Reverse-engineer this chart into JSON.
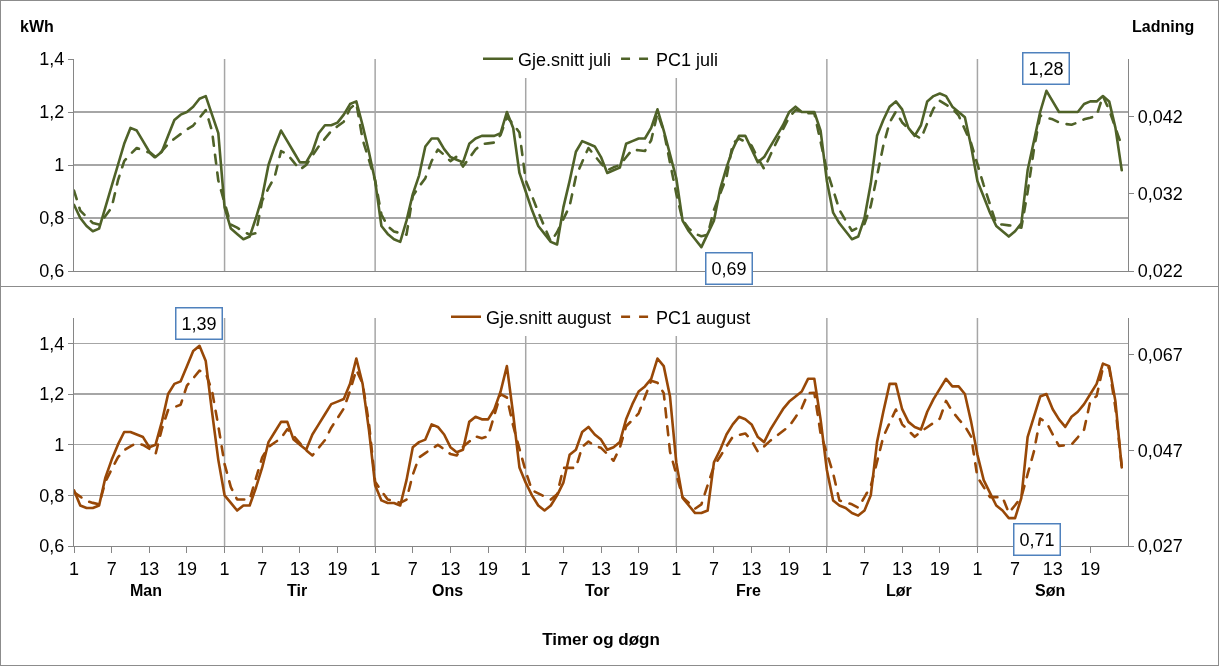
{
  "chart_data": [
    {
      "type": "line",
      "ylabel": "kWh",
      "y2label": "Ladning",
      "categories": [
        "1",
        null,
        null,
        null,
        null,
        null,
        "7",
        null,
        null,
        null,
        null,
        null,
        "13",
        null,
        null,
        null,
        null,
        null,
        "19",
        null,
        null,
        null,
        null,
        null,
        "1",
        null,
        null,
        null,
        null,
        null,
        "7",
        null,
        null,
        null,
        null,
        null,
        "13",
        null,
        null,
        null,
        null,
        null,
        "19",
        null,
        null,
        null,
        null,
        null,
        "1",
        null,
        null,
        null,
        null,
        null,
        "7",
        null,
        null,
        null,
        null,
        null,
        "13",
        null,
        null,
        null,
        null,
        null,
        "19",
        null,
        null,
        null,
        null,
        null,
        "1",
        null,
        null,
        null,
        null,
        null,
        "7",
        null,
        null,
        null,
        null,
        null,
        "13",
        null,
        null,
        null,
        null,
        null,
        "19",
        null,
        null,
        null,
        null,
        null,
        "1",
        null,
        null,
        null,
        null,
        null,
        "7",
        null,
        null,
        null,
        null,
        null,
        "13",
        null,
        null,
        null,
        null,
        null,
        "19",
        null,
        null,
        null,
        null,
        null,
        "1",
        null,
        null,
        null,
        null,
        null,
        "7",
        null,
        null,
        null,
        null,
        null,
        "13",
        null,
        null,
        null,
        null,
        null,
        "19",
        null,
        null,
        null,
        null,
        null,
        "1",
        null,
        null,
        null,
        null,
        null,
        "7",
        null,
        null,
        null,
        null,
        null,
        "13",
        null,
        null,
        null,
        null,
        null,
        "19",
        null,
        null,
        null,
        null,
        null
      ],
      "ylim": [
        0.6,
        1.4
      ],
      "yticks": [
        {
          "value": 0.6,
          "label": "0,6"
        },
        {
          "value": 0.8,
          "label": "0,8"
        },
        1,
        {
          "value": 1.2,
          "label": "1,2"
        },
        {
          "value": 1.4,
          "label": "1,4"
        }
      ],
      "y2lim": [
        0.022,
        0.0494
      ],
      "y2ticks": [
        {
          "value": 0.022,
          "label": "0,022"
        },
        {
          "value": 0.032,
          "label": "0,032"
        },
        {
          "value": 0.042,
          "label": "0,042"
        }
      ],
      "tick_labels": "y",
      "grid": "y",
      "legend": "top",
      "annotations": [
        {
          "text": "1,28",
          "y": 1.28
        },
        "0,69"
      ],
      "series": [
        {
          "name": "Gje.snitt juli",
          "color": "#4f6228",
          "line_style": "solid",
          "values": [
            0.85,
            0.8,
            0.77,
            0.75,
            0.76,
            0.84,
            0.92,
            1.0,
            1.08,
            1.14,
            1.13,
            1.09,
            1.05,
            1.03,
            1.05,
            1.11,
            1.17,
            1.19,
            1.2,
            1.22,
            1.25,
            1.26,
            1.19,
            1.12,
            0.84,
            0.76,
            0.74,
            0.72,
            0.73,
            0.8,
            0.88,
            1.0,
            1.07,
            1.13,
            1.09,
            1.05,
            1.01,
            1.01,
            1.05,
            1.12,
            1.15,
            1.15,
            1.16,
            1.19,
            1.23,
            1.24,
            1.15,
            1.05,
            0.94,
            0.77,
            0.74,
            0.72,
            0.71,
            0.79,
            0.89,
            0.96,
            1.07,
            1.1,
            1.1,
            1.06,
            1.03,
            1.02,
            1.01,
            1.08,
            1.1,
            1.11,
            1.11,
            1.11,
            1.12,
            1.2,
            1.14,
            0.97,
            0.9,
            0.83,
            0.77,
            0.74,
            0.71,
            0.7,
            0.84,
            0.94,
            1.05,
            1.09,
            1.08,
            1.07,
            1.03,
            0.97,
            0.98,
            0.99,
            1.08,
            1.09,
            1.1,
            1.1,
            1.14,
            1.21,
            1.13,
            1.04,
            0.95,
            0.79,
            0.75,
            0.72,
            0.69,
            0.74,
            0.79,
            0.91,
            0.99,
            1.06,
            1.11,
            1.11,
            1.06,
            1.01,
            1.03,
            1.07,
            1.11,
            1.15,
            1.2,
            1.22,
            1.2,
            1.2,
            1.2,
            1.13,
            0.94,
            0.82,
            0.78,
            0.75,
            0.72,
            0.73,
            0.8,
            0.93,
            1.11,
            1.17,
            1.22,
            1.24,
            1.21,
            1.14,
            1.11,
            1.15,
            1.24,
            1.26,
            1.27,
            1.26,
            1.22,
            1.2,
            1.18,
            1.07,
            0.94,
            0.88,
            0.82,
            0.77,
            0.75,
            0.73,
            0.75,
            0.78,
            0.98,
            1.09,
            1.2,
            1.28,
            1.24,
            1.2,
            1.2,
            1.2,
            1.2,
            1.23,
            1.24,
            1.24,
            1.26,
            1.24,
            1.14,
            0.98
          ]
        },
        {
          "name": "PC1 juli",
          "color": "#4f6228",
          "line_style": "dashed",
          "axis": "y2",
          "values": [
            0.0324,
            0.0298,
            0.029,
            0.0282,
            0.028,
            0.0291,
            0.0302,
            0.0337,
            0.0362,
            0.0371,
            0.0379,
            0.0376,
            0.0373,
            0.0366,
            0.0375,
            0.0384,
            0.0391,
            0.0397,
            0.0403,
            0.0408,
            0.0418,
            0.0428,
            0.0401,
            0.0337,
            0.0308,
            0.028,
            0.0276,
            0.0271,
            0.0267,
            0.0269,
            0.0311,
            0.0327,
            0.0342,
            0.0375,
            0.0371,
            0.0361,
            0.0351,
            0.0357,
            0.0369,
            0.0381,
            0.0391,
            0.0401,
            0.0407,
            0.0413,
            0.043,
            0.0437,
            0.039,
            0.0364,
            0.0337,
            0.0293,
            0.0278,
            0.0271,
            0.0269,
            0.0267,
            0.0317,
            0.0329,
            0.034,
            0.0362,
            0.0377,
            0.037,
            0.0362,
            0.0368,
            0.0355,
            0.0366,
            0.0377,
            0.0384,
            0.0385,
            0.0386,
            0.0396,
            0.0419,
            0.041,
            0.0399,
            0.0337,
            0.0317,
            0.0296,
            0.0277,
            0.0258,
            0.027,
            0.0287,
            0.0304,
            0.0342,
            0.0361,
            0.0379,
            0.0369,
            0.0359,
            0.035,
            0.0354,
            0.0357,
            0.0367,
            0.0377,
            0.0376,
            0.0375,
            0.0389,
            0.0424,
            0.0401,
            0.036,
            0.032,
            0.0286,
            0.0275,
            0.0268,
            0.0265,
            0.0267,
            0.0299,
            0.032,
            0.0341,
            0.0385,
            0.0391,
            0.0387,
            0.0382,
            0.0366,
            0.0352,
            0.037,
            0.0387,
            0.0403,
            0.0419,
            0.0428,
            0.0426,
            0.0424,
            0.0424,
            0.0387,
            0.035,
            0.0325,
            0.0299,
            0.0285,
            0.0272,
            0.0276,
            0.0281,
            0.0304,
            0.0343,
            0.0382,
            0.0412,
            0.0426,
            0.0412,
            0.0404,
            0.0396,
            0.0391,
            0.0411,
            0.043,
            0.044,
            0.0435,
            0.043,
            0.0421,
            0.0403,
            0.0385,
            0.0358,
            0.0331,
            0.0306,
            0.0281,
            0.028,
            0.0279,
            0.0278,
            0.0276,
            0.0322,
            0.0377,
            0.0421,
            0.0418,
            0.0416,
            0.0412,
            0.041,
            0.0409,
            0.0412,
            0.0416,
            0.0418,
            0.0421,
            0.0446,
            0.0428,
            0.0405,
            0.0382
          ]
        }
      ]
    },
    {
      "type": "line",
      "xlabel": "Timer og døgn",
      "categories": [
        "1",
        null,
        null,
        null,
        null,
        null,
        "7",
        null,
        null,
        null,
        null,
        null,
        "13",
        null,
        null,
        null,
        null,
        null,
        "19",
        null,
        null,
        null,
        null,
        null,
        "1",
        null,
        null,
        null,
        null,
        null,
        "7",
        null,
        null,
        null,
        null,
        null,
        "13",
        null,
        null,
        null,
        null,
        null,
        "19",
        null,
        null,
        null,
        null,
        null,
        "1",
        null,
        null,
        null,
        null,
        null,
        "7",
        null,
        null,
        null,
        null,
        null,
        "13",
        null,
        null,
        null,
        null,
        null,
        "19",
        null,
        null,
        null,
        null,
        null,
        "1",
        null,
        null,
        null,
        null,
        null,
        "7",
        null,
        null,
        null,
        null,
        null,
        "13",
        null,
        null,
        null,
        null,
        null,
        "19",
        null,
        null,
        null,
        null,
        null,
        "1",
        null,
        null,
        null,
        null,
        null,
        "7",
        null,
        null,
        null,
        null,
        null,
        "13",
        null,
        null,
        null,
        null,
        null,
        "19",
        null,
        null,
        null,
        null,
        null,
        "1",
        null,
        null,
        null,
        null,
        null,
        "7",
        null,
        null,
        null,
        null,
        null,
        "13",
        null,
        null,
        null,
        null,
        null,
        "19",
        null,
        null,
        null,
        null,
        null,
        "1",
        null,
        null,
        null,
        null,
        null,
        "7",
        null,
        null,
        null,
        null,
        null,
        "13",
        null,
        null,
        null,
        null,
        null,
        "19",
        null,
        null,
        null,
        null,
        null
      ],
      "ylim": [
        0.6,
        1.5
      ],
      "yticks": [
        {
          "value": 0.6,
          "label": "0,6"
        },
        {
          "value": 0.8,
          "label": "0,8"
        },
        1,
        {
          "value": 1.2,
          "label": "1,2"
        },
        {
          "value": 1.4,
          "label": "1,4"
        }
      ],
      "y2lim": [
        0.027,
        0.0746
      ],
      "y2ticks": [
        {
          "value": 0.027,
          "label": "0,027"
        },
        {
          "value": 0.047,
          "label": "0,047"
        },
        {
          "value": 0.067,
          "label": "0,067"
        }
      ],
      "grid": "y",
      "legend": "top",
      "annotations": [
        "Man",
        "Tir",
        "Ons",
        "Tor",
        "Fre",
        "Lør",
        "Søn",
        {
          "text": "1,39",
          "y": 1.39
        },
        "0,71"
      ],
      "series": [
        {
          "name": "Gje.snitt august",
          "color": "#984807",
          "line_style": "solid",
          "values": [
            0.82,
            0.76,
            0.75,
            0.75,
            0.76,
            0.87,
            0.94,
            1.0,
            1.05,
            1.05,
            1.04,
            1.03,
            0.99,
            1.0,
            1.09,
            1.2,
            1.24,
            1.25,
            1.31,
            1.37,
            1.39,
            1.33,
            1.13,
            0.94,
            0.8,
            0.77,
            0.74,
            0.76,
            0.76,
            0.83,
            0.91,
            1.01,
            1.05,
            1.09,
            1.09,
            1.02,
            1.0,
            0.98,
            1.04,
            1.08,
            1.12,
            1.16,
            1.17,
            1.18,
            1.24,
            1.34,
            1.24,
            1.06,
            0.84,
            0.78,
            0.77,
            0.77,
            0.76,
            0.86,
            0.99,
            1.01,
            1.02,
            1.08,
            1.07,
            1.04,
            0.99,
            0.97,
            0.98,
            1.09,
            1.11,
            1.1,
            1.1,
            1.14,
            1.21,
            1.31,
            1.12,
            0.91,
            0.85,
            0.8,
            0.76,
            0.74,
            0.76,
            0.8,
            0.85,
            0.96,
            0.98,
            1.05,
            1.07,
            1.04,
            1.02,
            0.98,
            0.99,
            1.01,
            1.1,
            1.16,
            1.21,
            1.23,
            1.26,
            1.34,
            1.31,
            1.19,
            0.93,
            0.79,
            0.76,
            0.73,
            0.73,
            0.74,
            0.93,
            0.98,
            1.04,
            1.08,
            1.11,
            1.1,
            1.08,
            1.03,
            1.01,
            1.06,
            1.1,
            1.14,
            1.17,
            1.19,
            1.21,
            1.26,
            1.26,
            1.1,
            0.9,
            0.78,
            0.76,
            0.75,
            0.73,
            0.72,
            0.74,
            0.8,
            1.01,
            1.13,
            1.24,
            1.24,
            1.14,
            1.09,
            1.07,
            1.06,
            1.13,
            1.18,
            1.22,
            1.26,
            1.23,
            1.23,
            1.2,
            1.09,
            0.96,
            0.86,
            0.81,
            0.76,
            0.74,
            0.71,
            0.71,
            0.79,
            1.03,
            1.11,
            1.19,
            1.2,
            1.14,
            1.1,
            1.07,
            1.11,
            1.13,
            1.16,
            1.2,
            1.24,
            1.32,
            1.31,
            1.17,
            0.91
          ]
        },
        {
          "name": "PC1 august",
          "color": "#984807",
          "line_style": "dashed",
          "axis": "y2",
          "values": [
            0.0382,
            0.0373,
            0.0364,
            0.036,
            0.0357,
            0.0404,
            0.043,
            0.0455,
            0.047,
            0.0478,
            0.0485,
            0.0481,
            0.0473,
            0.0462,
            0.0514,
            0.0554,
            0.056,
            0.0565,
            0.0605,
            0.062,
            0.0636,
            0.0631,
            0.0594,
            0.0521,
            0.0441,
            0.0393,
            0.0367,
            0.0367,
            0.0367,
            0.0411,
            0.0455,
            0.0477,
            0.0486,
            0.0495,
            0.0514,
            0.05,
            0.0485,
            0.047,
            0.0459,
            0.0475,
            0.0491,
            0.0517,
            0.0537,
            0.0557,
            0.0594,
            0.0638,
            0.0609,
            0.0528,
            0.0404,
            0.0385,
            0.0367,
            0.0364,
            0.036,
            0.0367,
            0.0419,
            0.0455,
            0.0464,
            0.0473,
            0.0481,
            0.0472,
            0.0462,
            0.0459,
            0.0477,
            0.0488,
            0.0499,
            0.0495,
            0.0499,
            0.0543,
            0.0587,
            0.058,
            0.0521,
            0.0473,
            0.0426,
            0.0386,
            0.038,
            0.0373,
            0.0367,
            0.0378,
            0.0433,
            0.0433,
            0.0433,
            0.0477,
            0.0488,
            0.0479,
            0.0475,
            0.0462,
            0.0448,
            0.0475,
            0.052,
            0.0533,
            0.0547,
            0.0581,
            0.0615,
            0.0611,
            0.0589,
            0.0467,
            0.042,
            0.0372,
            0.036,
            0.0348,
            0.0357,
            0.0397,
            0.0437,
            0.0457,
            0.0478,
            0.0498,
            0.0502,
            0.0505,
            0.049,
            0.0467,
            0.0478,
            0.049,
            0.05,
            0.051,
            0.052,
            0.0539,
            0.0558,
            0.0589,
            0.059,
            0.0505,
            0.0464,
            0.0422,
            0.0365,
            0.0361,
            0.0357,
            0.035,
            0.0372,
            0.0395,
            0.0446,
            0.0498,
            0.0527,
            0.0555,
            0.0524,
            0.0511,
            0.0498,
            0.0509,
            0.0518,
            0.0527,
            0.0536,
            0.0573,
            0.0551,
            0.0535,
            0.052,
            0.0498,
            0.0414,
            0.0393,
            0.0372,
            0.0372,
            0.0372,
            0.0339,
            0.0355,
            0.0372,
            0.042,
            0.0467,
            0.0536,
            0.0528,
            0.0503,
            0.0479,
            0.048,
            0.0482,
            0.0497,
            0.0513,
            0.0573,
            0.0583,
            0.0642,
            0.0642,
            0.0558,
            0.0437
          ]
        }
      ]
    }
  ]
}
